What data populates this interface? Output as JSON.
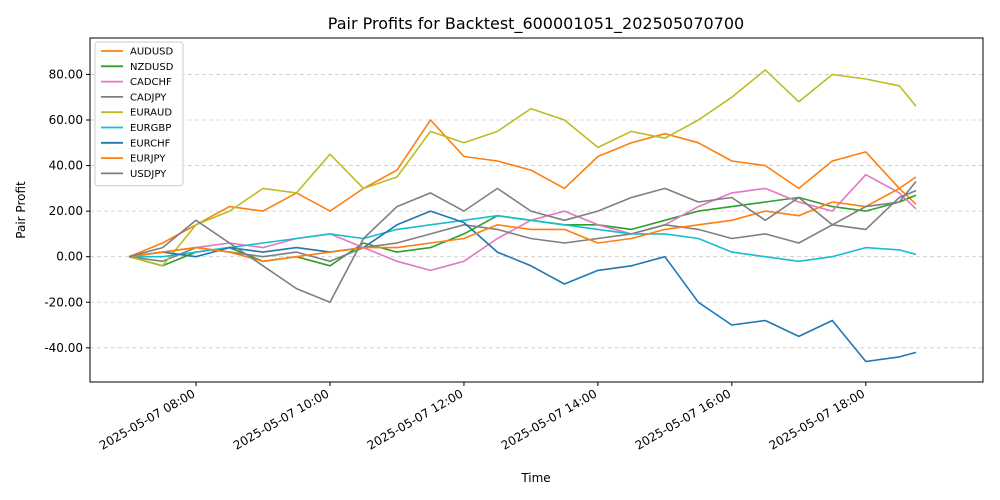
{
  "chart_data": {
    "type": "line",
    "title": "Pair Profits for Backtest_600001051_202505070700",
    "xlabel": "Time",
    "ylabel": "Pair Profit",
    "xlim": [
      "2025-05-07 06:25",
      "2025-05-07 19:45"
    ],
    "ylim": [
      -55,
      96
    ],
    "x_ticks": [
      "2025-05-07 08:00",
      "2025-05-07 10:00",
      "2025-05-07 12:00",
      "2025-05-07 14:00",
      "2025-05-07 16:00",
      "2025-05-07 18:00"
    ],
    "x_tick_labels": [
      "2025-05-07 08:00",
      "2025-05-07 10:00",
      "2025-05-07 12:00",
      "2025-05-07 14:00",
      "2025-05-07 16:00",
      "2025-05-07 18:00"
    ],
    "y_ticks": [
      -40,
      -20,
      0,
      20,
      40,
      60,
      80
    ],
    "y_tick_labels": [
      "-40.00",
      "-20.00",
      "0.00",
      "20.00",
      "40.00",
      "60.00",
      "80.00"
    ],
    "grid": "horizontal-dashed",
    "legend_position": "top-left",
    "series": [
      {
        "name": "AUDUSD",
        "color": "#ff7f0e",
        "x": [
          "2025-05-07 07:00",
          "2025-05-07 07:30",
          "2025-05-07 08:00",
          "2025-05-07 08:30",
          "2025-05-07 09:00",
          "2025-05-07 09:30",
          "2025-05-07 10:00",
          "2025-05-07 10:30",
          "2025-05-07 11:00",
          "2025-05-07 11:30",
          "2025-05-07 12:00",
          "2025-05-07 12:30",
          "2025-05-07 13:00",
          "2025-05-07 13:30",
          "2025-05-07 14:00",
          "2025-05-07 14:30",
          "2025-05-07 15:00",
          "2025-05-07 15:30",
          "2025-05-07 16:00",
          "2025-05-07 16:30",
          "2025-05-07 17:00",
          "2025-05-07 17:30",
          "2025-05-07 18:00",
          "2025-05-07 18:30",
          "2025-05-07 18:45"
        ],
        "values": [
          0,
          6,
          14,
          22,
          20,
          28,
          20,
          30,
          38,
          60,
          44,
          42,
          38,
          30,
          44,
          50,
          54,
          50,
          42,
          40,
          30,
          42,
          46,
          30,
          23
        ]
      },
      {
        "name": "NZDUSD",
        "color": "#2ca02c",
        "x": [
          "2025-05-07 07:00",
          "2025-05-07 07:30",
          "2025-05-07 08:00",
          "2025-05-07 08:30",
          "2025-05-07 09:00",
          "2025-05-07 09:30",
          "2025-05-07 10:00",
          "2025-05-07 10:30",
          "2025-05-07 11:00",
          "2025-05-07 11:30",
          "2025-05-07 12:00",
          "2025-05-07 12:30",
          "2025-05-07 13:00",
          "2025-05-07 13:30",
          "2025-05-07 14:00",
          "2025-05-07 14:30",
          "2025-05-07 15:00",
          "2025-05-07 15:30",
          "2025-05-07 16:00",
          "2025-05-07 16:30",
          "2025-05-07 17:00",
          "2025-05-07 17:30",
          "2025-05-07 18:00",
          "2025-05-07 18:30",
          "2025-05-07 18:45"
        ],
        "values": [
          0,
          -4,
          2,
          4,
          -2,
          0,
          -4,
          6,
          2,
          4,
          10,
          18,
          16,
          14,
          14,
          12,
          16,
          20,
          22,
          24,
          26,
          22,
          20,
          24,
          27
        ]
      },
      {
        "name": "CADCHF",
        "color": "#e377c2",
        "x": [
          "2025-05-07 07:00",
          "2025-05-07 07:30",
          "2025-05-07 08:00",
          "2025-05-07 08:30",
          "2025-05-07 09:00",
          "2025-05-07 09:30",
          "2025-05-07 10:00",
          "2025-05-07 10:30",
          "2025-05-07 11:00",
          "2025-05-07 11:30",
          "2025-05-07 12:00",
          "2025-05-07 12:30",
          "2025-05-07 13:00",
          "2025-05-07 13:30",
          "2025-05-07 14:00",
          "2025-05-07 14:30",
          "2025-05-07 15:00",
          "2025-05-07 15:30",
          "2025-05-07 16:00",
          "2025-05-07 16:30",
          "2025-05-07 17:00",
          "2025-05-07 17:30",
          "2025-05-07 18:00",
          "2025-05-07 18:30",
          "2025-05-07 18:45"
        ],
        "values": [
          0,
          2,
          4,
          6,
          4,
          8,
          10,
          4,
          -2,
          -6,
          -2,
          8,
          16,
          20,
          14,
          10,
          14,
          22,
          28,
          30,
          24,
          20,
          36,
          28,
          21
        ]
      },
      {
        "name": "CADJPY",
        "color": "#7f7f7f",
        "x": [
          "2025-05-07 07:00",
          "2025-05-07 07:30",
          "2025-05-07 08:00",
          "2025-05-07 08:30",
          "2025-05-07 09:00",
          "2025-05-07 09:30",
          "2025-05-07 10:00",
          "2025-05-07 10:30",
          "2025-05-07 11:00",
          "2025-05-07 11:30",
          "2025-05-07 12:00",
          "2025-05-07 12:30",
          "2025-05-07 13:00",
          "2025-05-07 13:30",
          "2025-05-07 14:00",
          "2025-05-07 14:30",
          "2025-05-07 15:00",
          "2025-05-07 15:30",
          "2025-05-07 16:00",
          "2025-05-07 16:30",
          "2025-05-07 17:00",
          "2025-05-07 17:30",
          "2025-05-07 18:00",
          "2025-05-07 18:30",
          "2025-05-07 18:45"
        ],
        "values": [
          0,
          -2,
          4,
          2,
          0,
          2,
          -2,
          4,
          6,
          10,
          14,
          12,
          8,
          6,
          8,
          10,
          14,
          12,
          8,
          10,
          6,
          14,
          12,
          26,
          29
        ]
      },
      {
        "name": "EURAUD",
        "color": "#bcbd22",
        "x": [
          "2025-05-07 07:00",
          "2025-05-07 07:30",
          "2025-05-07 08:00",
          "2025-05-07 08:30",
          "2025-05-07 09:00",
          "2025-05-07 09:30",
          "2025-05-07 10:00",
          "2025-05-07 10:30",
          "2025-05-07 11:00",
          "2025-05-07 11:30",
          "2025-05-07 12:00",
          "2025-05-07 12:30",
          "2025-05-07 13:00",
          "2025-05-07 13:30",
          "2025-05-07 14:00",
          "2025-05-07 14:30",
          "2025-05-07 15:00",
          "2025-05-07 15:30",
          "2025-05-07 16:00",
          "2025-05-07 16:30",
          "2025-05-07 17:00",
          "2025-05-07 17:30",
          "2025-05-07 18:00",
          "2025-05-07 18:30",
          "2025-05-07 18:45"
        ],
        "values": [
          0,
          -4,
          14,
          20,
          30,
          28,
          45,
          30,
          35,
          55,
          50,
          55,
          65,
          60,
          48,
          55,
          52,
          60,
          70,
          82,
          68,
          80,
          78,
          75,
          66
        ]
      },
      {
        "name": "EURGBP",
        "color": "#17becf",
        "x": [
          "2025-05-07 07:00",
          "2025-05-07 07:30",
          "2025-05-07 08:00",
          "2025-05-07 08:30",
          "2025-05-07 09:00",
          "2025-05-07 09:30",
          "2025-05-07 10:00",
          "2025-05-07 10:30",
          "2025-05-07 11:00",
          "2025-05-07 11:30",
          "2025-05-07 12:00",
          "2025-05-07 12:30",
          "2025-05-07 13:00",
          "2025-05-07 13:30",
          "2025-05-07 14:00",
          "2025-05-07 14:30",
          "2025-05-07 15:00",
          "2025-05-07 15:30",
          "2025-05-07 16:00",
          "2025-05-07 16:30",
          "2025-05-07 17:00",
          "2025-05-07 17:30",
          "2025-05-07 18:00",
          "2025-05-07 18:30",
          "2025-05-07 18:45"
        ],
        "values": [
          0,
          0,
          2,
          4,
          6,
          8,
          10,
          8,
          12,
          14,
          16,
          18,
          16,
          14,
          12,
          10,
          10,
          8,
          2,
          0,
          -2,
          0,
          4,
          3,
          1
        ]
      },
      {
        "name": "EURCHF",
        "color": "#1f77b4",
        "x": [
          "2025-05-07 07:00",
          "2025-05-07 07:30",
          "2025-05-07 08:00",
          "2025-05-07 08:30",
          "2025-05-07 09:00",
          "2025-05-07 09:30",
          "2025-05-07 10:00",
          "2025-05-07 10:30",
          "2025-05-07 11:00",
          "2025-05-07 11:30",
          "2025-05-07 12:00",
          "2025-05-07 12:30",
          "2025-05-07 13:00",
          "2025-05-07 13:30",
          "2025-05-07 14:00",
          "2025-05-07 14:30",
          "2025-05-07 15:00",
          "2025-05-07 15:30",
          "2025-05-07 16:00",
          "2025-05-07 16:30",
          "2025-05-07 17:00",
          "2025-05-07 17:30",
          "2025-05-07 18:00",
          "2025-05-07 18:30",
          "2025-05-07 18:45"
        ],
        "values": [
          0,
          2,
          0,
          4,
          2,
          4,
          2,
          4,
          14,
          20,
          15,
          2,
          -4,
          -12,
          -6,
          -4,
          0,
          -20,
          -30,
          -28,
          -35,
          -28,
          -46,
          -44,
          -42
        ]
      },
      {
        "name": "EURJPY",
        "color": "#ff7f0e",
        "x": [
          "2025-05-07 07:00",
          "2025-05-07 07:30",
          "2025-05-07 08:00",
          "2025-05-07 08:30",
          "2025-05-07 09:00",
          "2025-05-07 09:30",
          "2025-05-07 10:00",
          "2025-05-07 10:30",
          "2025-05-07 11:00",
          "2025-05-07 11:30",
          "2025-05-07 12:00",
          "2025-05-07 12:30",
          "2025-05-07 13:00",
          "2025-05-07 13:30",
          "2025-05-07 14:00",
          "2025-05-07 14:30",
          "2025-05-07 15:00",
          "2025-05-07 15:30",
          "2025-05-07 16:00",
          "2025-05-07 16:30",
          "2025-05-07 17:00",
          "2025-05-07 17:30",
          "2025-05-07 18:00",
          "2025-05-07 18:30",
          "2025-05-07 18:45"
        ],
        "values": [
          0,
          2,
          4,
          2,
          -2,
          0,
          2,
          4,
          4,
          6,
          8,
          14,
          12,
          12,
          6,
          8,
          12,
          14,
          16,
          20,
          18,
          24,
          22,
          30,
          35
        ]
      },
      {
        "name": "USDJPY",
        "color": "#7f7f7f",
        "x": [
          "2025-05-07 07:00",
          "2025-05-07 07:30",
          "2025-05-07 08:00",
          "2025-05-07 08:30",
          "2025-05-07 09:00",
          "2025-05-07 09:30",
          "2025-05-07 10:00",
          "2025-05-07 10:30",
          "2025-05-07 11:00",
          "2025-05-07 11:30",
          "2025-05-07 12:00",
          "2025-05-07 12:30",
          "2025-05-07 13:00",
          "2025-05-07 13:30",
          "2025-05-07 14:00",
          "2025-05-07 14:30",
          "2025-05-07 15:00",
          "2025-05-07 15:30",
          "2025-05-07 16:00",
          "2025-05-07 16:30",
          "2025-05-07 17:00",
          "2025-05-07 17:30",
          "2025-05-07 18:00",
          "2025-05-07 18:30",
          "2025-05-07 18:45"
        ],
        "values": [
          0,
          4,
          16,
          6,
          -4,
          -14,
          -20,
          8,
          22,
          28,
          20,
          30,
          20,
          16,
          20,
          26,
          30,
          24,
          26,
          16,
          26,
          14,
          22,
          24,
          33
        ]
      }
    ]
  }
}
